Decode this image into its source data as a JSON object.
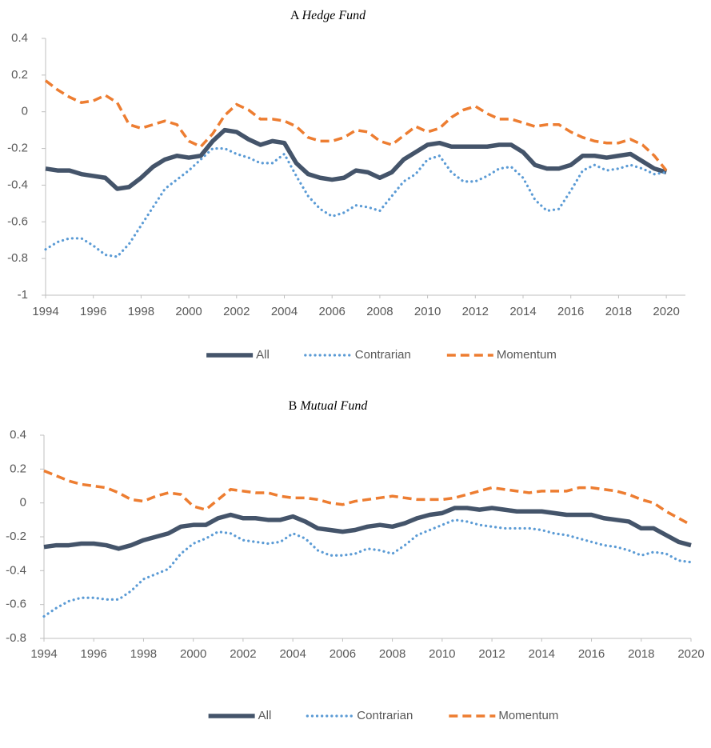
{
  "chart_data": [
    {
      "type": "line",
      "panel": "A",
      "title": "Hedge Fund",
      "x": [
        1994,
        1994.5,
        1995,
        1995.5,
        1996,
        1996.5,
        1997,
        1997.5,
        1998,
        1998.5,
        1999,
        1999.5,
        2000,
        2000.5,
        2001,
        2001.5,
        2002,
        2002.5,
        2003,
        2003.5,
        2004,
        2004.5,
        2005,
        2005.5,
        2006,
        2006.5,
        2007,
        2007.5,
        2008,
        2008.5,
        2009,
        2009.5,
        2010,
        2010.5,
        2011,
        2011.5,
        2012,
        2012.5,
        2013,
        2013.5,
        2014,
        2014.5,
        2015,
        2015.5,
        2016,
        2016.5,
        2017,
        2017.5,
        2018,
        2018.5,
        2019,
        2019.5,
        2020
      ],
      "xlim": [
        1994,
        2020.8
      ],
      "xticks": [
        1994,
        1996,
        1998,
        2000,
        2002,
        2004,
        2006,
        2008,
        2010,
        2012,
        2014,
        2016,
        2018,
        2020
      ],
      "ylim": [
        -1,
        0.4
      ],
      "yticks": [
        0.4,
        0.2,
        0,
        -0.2,
        -0.4,
        -0.6,
        -0.8,
        -1
      ],
      "legend": "bottom",
      "series": [
        {
          "name": "All",
          "color": "#44546a",
          "style": "solid",
          "values": [
            -0.31,
            -0.32,
            -0.32,
            -0.34,
            -0.35,
            -0.36,
            -0.42,
            -0.41,
            -0.36,
            -0.3,
            -0.26,
            -0.24,
            -0.25,
            -0.24,
            -0.16,
            -0.1,
            -0.11,
            -0.15,
            -0.18,
            -0.16,
            -0.17,
            -0.28,
            -0.34,
            -0.36,
            -0.37,
            -0.36,
            -0.32,
            -0.33,
            -0.36,
            -0.33,
            -0.26,
            -0.22,
            -0.18,
            -0.17,
            -0.19,
            -0.19,
            -0.19,
            -0.19,
            -0.18,
            -0.18,
            -0.22,
            -0.29,
            -0.31,
            -0.31,
            -0.29,
            -0.24,
            -0.24,
            -0.25,
            -0.24,
            -0.23,
            -0.27,
            -0.31,
            -0.33
          ]
        },
        {
          "name": "Contrarian",
          "color": "#5b9bd5",
          "style": "dotted",
          "values": [
            -0.75,
            -0.71,
            -0.69,
            -0.69,
            -0.73,
            -0.78,
            -0.79,
            -0.72,
            -0.62,
            -0.52,
            -0.42,
            -0.37,
            -0.32,
            -0.26,
            -0.2,
            -0.2,
            -0.23,
            -0.25,
            -0.28,
            -0.28,
            -0.23,
            -0.35,
            -0.46,
            -0.53,
            -0.57,
            -0.55,
            -0.51,
            -0.52,
            -0.54,
            -0.46,
            -0.38,
            -0.34,
            -0.26,
            -0.24,
            -0.33,
            -0.38,
            -0.38,
            -0.35,
            -0.31,
            -0.3,
            -0.36,
            -0.48,
            -0.54,
            -0.53,
            -0.43,
            -0.32,
            -0.29,
            -0.32,
            -0.31,
            -0.29,
            -0.31,
            -0.34,
            -0.33
          ]
        },
        {
          "name": "Momentum",
          "color": "#ed7d31",
          "style": "dashed",
          "values": [
            0.17,
            0.12,
            0.08,
            0.05,
            0.06,
            0.09,
            0.05,
            -0.07,
            -0.09,
            -0.07,
            -0.05,
            -0.07,
            -0.16,
            -0.19,
            -0.12,
            -0.02,
            0.04,
            0.01,
            -0.04,
            -0.04,
            -0.05,
            -0.08,
            -0.14,
            -0.16,
            -0.16,
            -0.14,
            -0.1,
            -0.11,
            -0.16,
            -0.18,
            -0.13,
            -0.08,
            -0.11,
            -0.09,
            -0.03,
            0.01,
            0.03,
            -0.01,
            -0.04,
            -0.04,
            -0.06,
            -0.08,
            -0.07,
            -0.07,
            -0.11,
            -0.14,
            -0.16,
            -0.17,
            -0.17,
            -0.15,
            -0.18,
            -0.24,
            -0.32
          ]
        }
      ]
    },
    {
      "type": "line",
      "panel": "B",
      "title": "Mutual Fund",
      "x": [
        1994,
        1994.5,
        1995,
        1995.5,
        1996,
        1996.5,
        1997,
        1997.5,
        1998,
        1998.5,
        1999,
        1999.5,
        2000,
        2000.5,
        2001,
        2001.5,
        2002,
        2002.5,
        2003,
        2003.5,
        2004,
        2004.5,
        2005,
        2005.5,
        2006,
        2006.5,
        2007,
        2007.5,
        2008,
        2008.5,
        2009,
        2009.5,
        2010,
        2010.5,
        2011,
        2011.5,
        2012,
        2012.5,
        2013,
        2013.5,
        2014,
        2014.5,
        2015,
        2015.5,
        2016,
        2016.5,
        2017,
        2017.5,
        2018,
        2018.5,
        2019,
        2019.5,
        2020
      ],
      "xlim": [
        1994,
        2020
      ],
      "xticks": [
        1994,
        1996,
        1998,
        2000,
        2002,
        2004,
        2006,
        2008,
        2010,
        2012,
        2014,
        2016,
        2018,
        2020
      ],
      "ylim": [
        -0.8,
        0.4
      ],
      "yticks": [
        0.4,
        0.2,
        0,
        -0.2,
        -0.4,
        -0.6,
        -0.8
      ],
      "legend": "bottom",
      "series": [
        {
          "name": "All",
          "color": "#44546a",
          "style": "solid",
          "values": [
            -0.26,
            -0.25,
            -0.25,
            -0.24,
            -0.24,
            -0.25,
            -0.27,
            -0.25,
            -0.22,
            -0.2,
            -0.18,
            -0.14,
            -0.13,
            -0.13,
            -0.09,
            -0.07,
            -0.09,
            -0.09,
            -0.1,
            -0.1,
            -0.08,
            -0.11,
            -0.15,
            -0.16,
            -0.17,
            -0.16,
            -0.14,
            -0.13,
            -0.14,
            -0.12,
            -0.09,
            -0.07,
            -0.06,
            -0.03,
            -0.03,
            -0.04,
            -0.03,
            -0.04,
            -0.05,
            -0.05,
            -0.05,
            -0.06,
            -0.07,
            -0.07,
            -0.07,
            -0.09,
            -0.1,
            -0.11,
            -0.15,
            -0.15,
            -0.19,
            -0.23,
            -0.25
          ]
        },
        {
          "name": "Contrarian",
          "color": "#5b9bd5",
          "style": "dotted",
          "values": [
            -0.67,
            -0.62,
            -0.58,
            -0.56,
            -0.56,
            -0.57,
            -0.57,
            -0.52,
            -0.45,
            -0.42,
            -0.39,
            -0.3,
            -0.24,
            -0.21,
            -0.17,
            -0.18,
            -0.22,
            -0.23,
            -0.24,
            -0.23,
            -0.18,
            -0.21,
            -0.28,
            -0.31,
            -0.31,
            -0.3,
            -0.27,
            -0.28,
            -0.3,
            -0.25,
            -0.19,
            -0.16,
            -0.13,
            -0.1,
            -0.11,
            -0.13,
            -0.14,
            -0.15,
            -0.15,
            -0.15,
            -0.16,
            -0.18,
            -0.19,
            -0.21,
            -0.23,
            -0.25,
            -0.26,
            -0.28,
            -0.31,
            -0.29,
            -0.3,
            -0.34,
            -0.35
          ]
        },
        {
          "name": "Momentum",
          "color": "#ed7d31",
          "style": "dashed",
          "values": [
            0.19,
            0.16,
            0.13,
            0.11,
            0.1,
            0.09,
            0.06,
            0.02,
            0.01,
            0.04,
            0.06,
            0.05,
            -0.02,
            -0.04,
            0.02,
            0.08,
            0.07,
            0.06,
            0.06,
            0.04,
            0.03,
            0.03,
            0.02,
            0.0,
            -0.01,
            0.01,
            0.02,
            0.03,
            0.04,
            0.03,
            0.02,
            0.02,
            0.02,
            0.03,
            0.05,
            0.07,
            0.09,
            0.08,
            0.07,
            0.06,
            0.07,
            0.07,
            0.07,
            0.09,
            0.09,
            0.08,
            0.07,
            0.05,
            0.02,
            0.0,
            -0.05,
            -0.09,
            -0.13
          ]
        }
      ]
    }
  ]
}
